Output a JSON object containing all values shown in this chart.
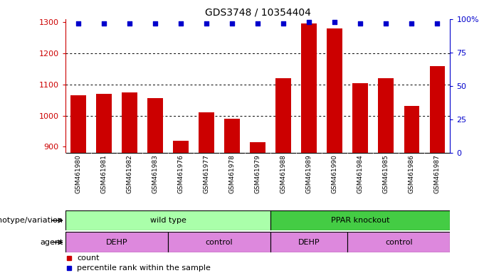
{
  "title": "GDS3748 / 10354404",
  "samples": [
    "GSM461980",
    "GSM461981",
    "GSM461982",
    "GSM461983",
    "GSM461976",
    "GSM461977",
    "GSM461978",
    "GSM461979",
    "GSM461988",
    "GSM461989",
    "GSM461990",
    "GSM461984",
    "GSM461985",
    "GSM461986",
    "GSM461987"
  ],
  "counts": [
    1065,
    1070,
    1075,
    1055,
    920,
    1010,
    990,
    915,
    1120,
    1295,
    1280,
    1105,
    1120,
    1030,
    1160
  ],
  "percentiles": [
    97,
    97,
    97,
    97,
    97,
    97,
    97,
    97,
    97,
    98,
    98,
    97,
    97,
    97,
    97
  ],
  "bar_color": "#cc0000",
  "dot_color": "#0000cc",
  "ylim_left": [
    880,
    1310
  ],
  "ylim_right": [
    0,
    100
  ],
  "yticks_left": [
    900,
    1000,
    1100,
    1200,
    1300
  ],
  "yticks_right": [
    0,
    25,
    50,
    75,
    100
  ],
  "ytick_labels_right": [
    "0",
    "25",
    "50",
    "75",
    "100%"
  ],
  "grid_lines": [
    1000,
    1100,
    1200
  ],
  "genotype_groups": [
    {
      "label": "wild type",
      "start": 0,
      "end": 8,
      "color": "#aaffaa"
    },
    {
      "label": "PPAR knockout",
      "start": 8,
      "end": 15,
      "color": "#44cc44"
    }
  ],
  "agent_groups": [
    {
      "label": "DEHP",
      "start": 0,
      "end": 4,
      "color": "#dd88dd"
    },
    {
      "label": "control",
      "start": 4,
      "end": 8,
      "color": "#dd88dd"
    },
    {
      "label": "DEHP",
      "start": 8,
      "end": 11,
      "color": "#dd88dd"
    },
    {
      "label": "control",
      "start": 11,
      "end": 15,
      "color": "#dd88dd"
    }
  ],
  "legend_count_color": "#cc0000",
  "legend_dot_color": "#0000cc",
  "bg_color": "#ffffff",
  "tick_area_color": "#cccccc",
  "label_genotype": "genotype/variation",
  "label_agent": "agent",
  "n": 15,
  "ymin": 880
}
